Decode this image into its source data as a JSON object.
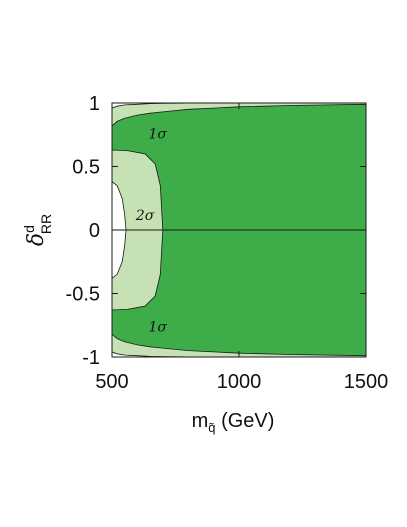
{
  "chart_data": {
    "type": "area",
    "title": "",
    "xlabel": "m",
    "xlabel_subscript": "q̃",
    "xlabel_unit": "(GeV)",
    "ylabel": "δ",
    "ylabel_superscript": "d",
    "ylabel_subscript": "RR",
    "xlim": [
      500,
      1500
    ],
    "ylim": [
      -1,
      1
    ],
    "xticks": [
      500,
      1000,
      1500
    ],
    "yticks": [
      -1,
      -0.5,
      0,
      0.5,
      1
    ],
    "xtick_labels": [
      "500",
      "1000",
      "1500"
    ],
    "ytick_labels": [
      "-1",
      "-0.5",
      "0",
      "0.5",
      "1"
    ],
    "grid": false,
    "reference_line_y": 0,
    "colors": {
      "one_sigma": "#3fac4a",
      "two_sigma": "#c6e2b4",
      "excluded": "#ffffff",
      "outline": "#1a1a1a"
    },
    "regions": [
      {
        "name": "1σ",
        "label": "1σ",
        "color": "#3fac4a",
        "upper_boundary": {
          "x": [
            500,
            520,
            550,
            600,
            650,
            700,
            800,
            900,
            1000,
            1200,
            1500
          ],
          "y": [
            0.82,
            0.855,
            0.88,
            0.905,
            0.92,
            0.93,
            0.95,
            0.96,
            0.97,
            0.98,
            0.99
          ]
        },
        "lower_boundary": {
          "x": [
            500,
            520,
            550,
            600,
            650,
            700,
            800,
            900,
            1000,
            1200,
            1500
          ],
          "y": [
            -0.82,
            -0.855,
            -0.88,
            -0.905,
            -0.92,
            -0.93,
            -0.95,
            -0.96,
            -0.97,
            -0.98,
            -0.99
          ]
        },
        "label_positions": [
          {
            "x": 680,
            "y": 0.76
          },
          {
            "x": 680,
            "y": -0.76
          }
        ]
      },
      {
        "name": "2σ",
        "label": "2σ",
        "color": "#c6e2b4",
        "upper_boundary": {
          "x": [
            500,
            520,
            550,
            600,
            650,
            700,
            800,
            900,
            1000,
            1200,
            1500
          ],
          "y": [
            0.96,
            0.975,
            0.985,
            0.99,
            0.995,
            0.997,
            0.999,
            1.0,
            1.0,
            1.0,
            1.0
          ]
        },
        "lower_boundary": {
          "x": [
            500,
            520,
            550,
            600,
            650,
            700,
            800,
            900,
            1000,
            1200,
            1500
          ],
          "y": [
            -0.96,
            -0.975,
            -0.985,
            -0.99,
            -0.995,
            -0.997,
            -0.999,
            -1.0,
            -1.0,
            -1.0,
            -1.0
          ]
        },
        "inner_contour": {
          "x": [
            500,
            560,
            630,
            670,
            690,
            700,
            690,
            670,
            630,
            560,
            500
          ],
          "y": [
            0.63,
            0.625,
            0.6,
            0.52,
            0.35,
            0.0,
            -0.35,
            -0.52,
            -0.6,
            -0.625,
            -0.63
          ]
        },
        "label_positions": [
          {
            "x": 630,
            "y": 0.12
          }
        ]
      },
      {
        "name": "excluded",
        "label": "",
        "color": "#ffffff",
        "inner_contour": {
          "x": [
            500,
            520,
            540,
            550,
            555,
            550,
            540,
            520,
            500
          ],
          "y": [
            0.38,
            0.35,
            0.25,
            0.12,
            0.0,
            -0.12,
            -0.25,
            -0.35,
            -0.38
          ]
        }
      }
    ]
  }
}
